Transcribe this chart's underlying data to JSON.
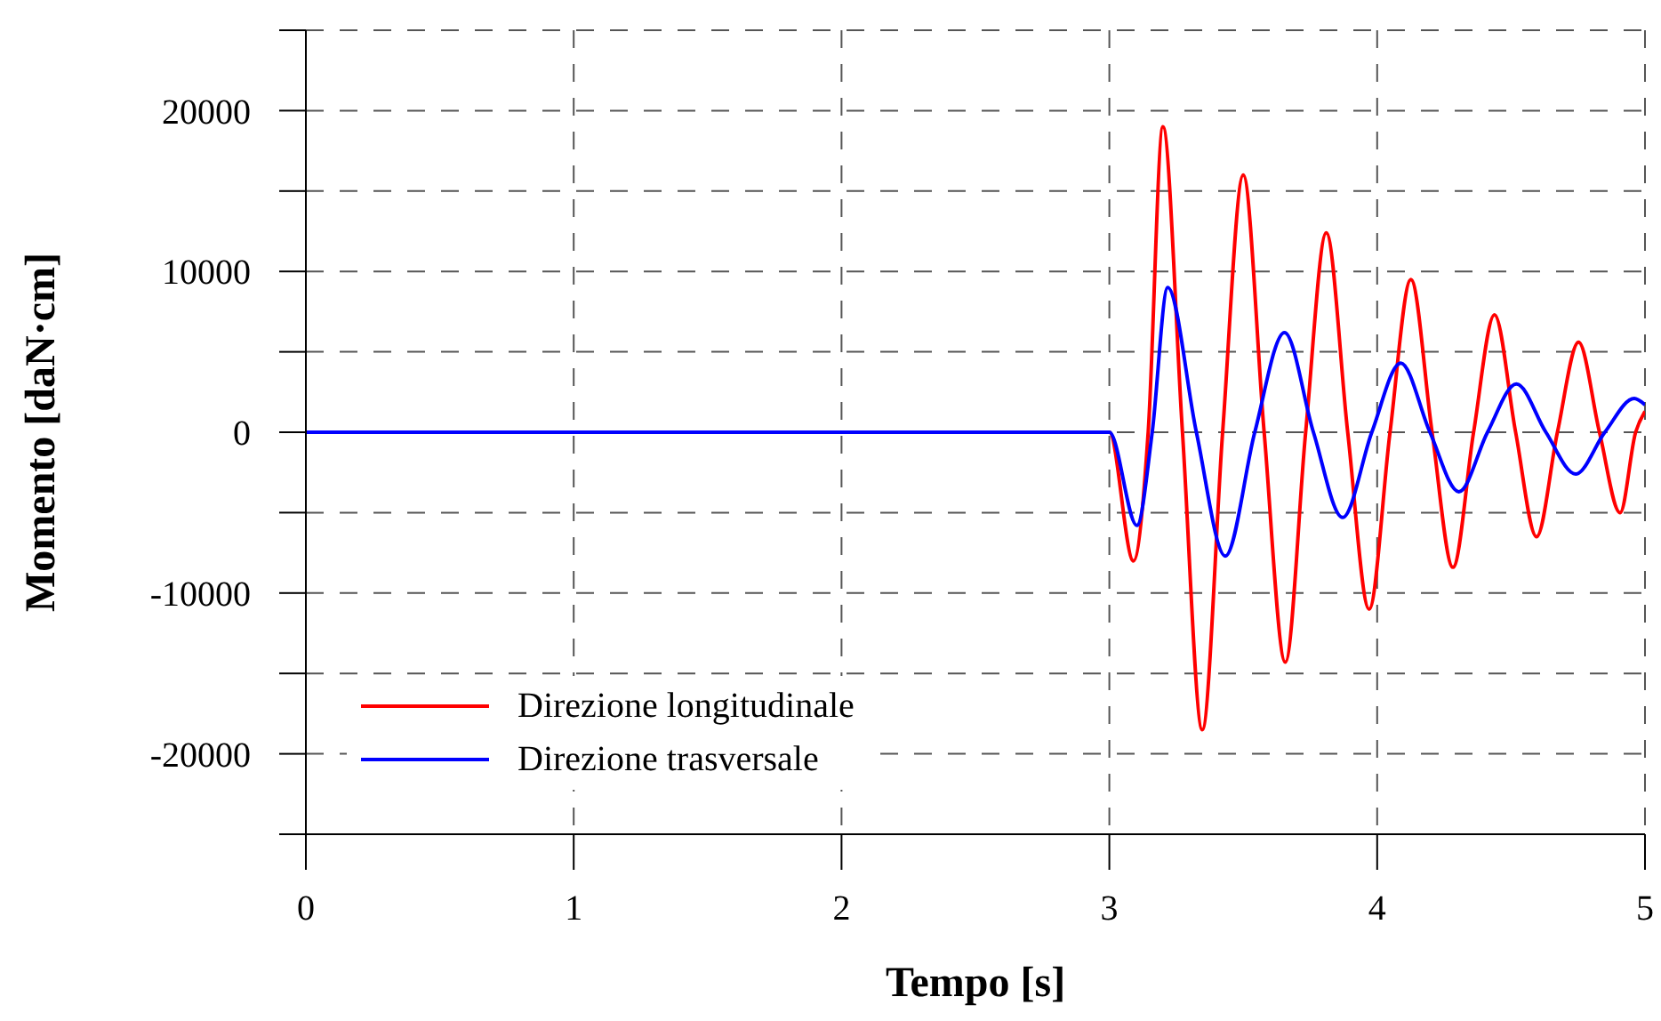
{
  "chart_data": {
    "type": "line",
    "xlabel": "Tempo [s]",
    "ylabel": "Momento [daN·cm]",
    "xlim": [
      0,
      5
    ],
    "xticks": [
      0,
      1,
      2,
      3,
      4,
      5
    ],
    "ylim": [
      -25000,
      25000
    ],
    "yticks": [
      {
        "value": -25000,
        "label": null
      },
      -20000,
      {
        "value": -15000,
        "label": null
      },
      -10000,
      {
        "value": -5000,
        "label": null
      },
      0,
      {
        "value": 5000,
        "label": null
      },
      10000,
      {
        "value": 15000,
        "label": null
      },
      20000,
      {
        "value": 25000,
        "label": null
      }
    ],
    "grid": true,
    "legend": "bottom left",
    "marker": "none",
    "line_style": "solid",
    "series": [
      {
        "name": "Direzione longitudinale",
        "color": "#ff0000",
        "x": [
          0,
          3.0,
          3.09,
          3.145,
          3.2,
          3.273,
          3.347,
          3.423,
          3.5,
          3.578,
          3.657,
          3.733,
          3.81,
          3.89,
          3.97,
          4.048,
          4.126,
          4.205,
          4.283,
          4.36,
          4.438,
          4.517,
          4.595,
          4.673,
          4.752,
          4.83,
          4.907,
          4.965,
          5.0
        ],
        "values": [
          0,
          0,
          -8000,
          0,
          19000,
          0,
          -18500,
          0,
          16000,
          0,
          -14300,
          0,
          12400,
          0,
          -11000,
          0,
          9500,
          0,
          -8400,
          0,
          7300,
          0,
          -6500,
          0,
          5600,
          0,
          -5000,
          0,
          1300
        ]
      },
      {
        "name": "Direzione trasversale",
        "color": "#0000ff",
        "x": [
          0,
          3.0,
          3.103,
          3.16,
          3.218,
          3.325,
          3.433,
          3.543,
          3.654,
          3.762,
          3.871,
          3.98,
          4.088,
          4.197,
          4.305,
          4.412,
          4.52,
          4.63,
          4.741,
          4.85,
          4.96,
          5.0
        ],
        "values": [
          0,
          0,
          -5800,
          0,
          9000,
          0,
          -7700,
          0,
          6200,
          0,
          -5300,
          0,
          4300,
          0,
          -3700,
          0,
          3000,
          0,
          -2600,
          0,
          2100,
          1700
        ]
      }
    ]
  }
}
